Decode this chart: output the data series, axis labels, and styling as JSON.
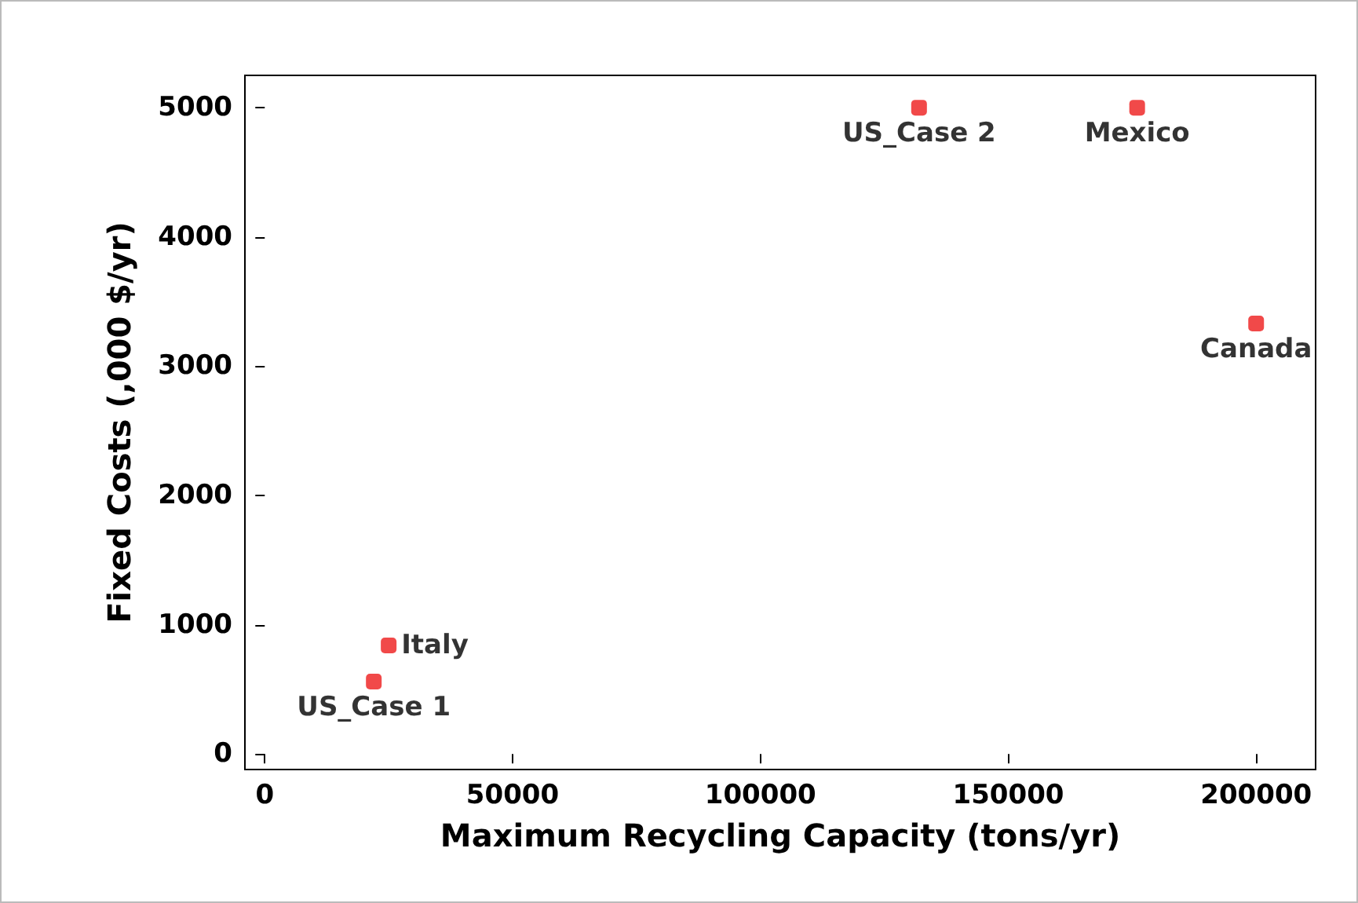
{
  "chart_data": {
    "type": "scatter",
    "xlabel": "Maximum Recycling Capacity (tons/yr)",
    "ylabel": "Fixed Costs (,000 $/yr)",
    "x": [
      22000,
      25000,
      132000,
      176000,
      200000
    ],
    "series": [
      {
        "color": "#ee1c1c",
        "values": [
          560,
          840,
          5000,
          5000,
          3330
        ]
      }
    ],
    "xlim": [
      -4000,
      212000
    ],
    "ylim": [
      -120,
      5250
    ],
    "xticks": [
      0,
      50000,
      100000,
      150000,
      200000
    ],
    "yticks": [
      0,
      1000,
      2000,
      3000,
      4000,
      5000
    ],
    "grid": false,
    "marker": "square",
    "annotations": [
      {
        "text": "US_Case 1",
        "x": 22000,
        "y": 560
      },
      {
        "text": "Italy",
        "x": 25000,
        "y": 840
      },
      {
        "text": "US_Case 2",
        "x": 132000,
        "y": 5000
      },
      {
        "text": "Mexico",
        "x": 176000,
        "y": 5000
      },
      {
        "text": "Canada",
        "x": 200000,
        "y": 3330
      }
    ]
  }
}
